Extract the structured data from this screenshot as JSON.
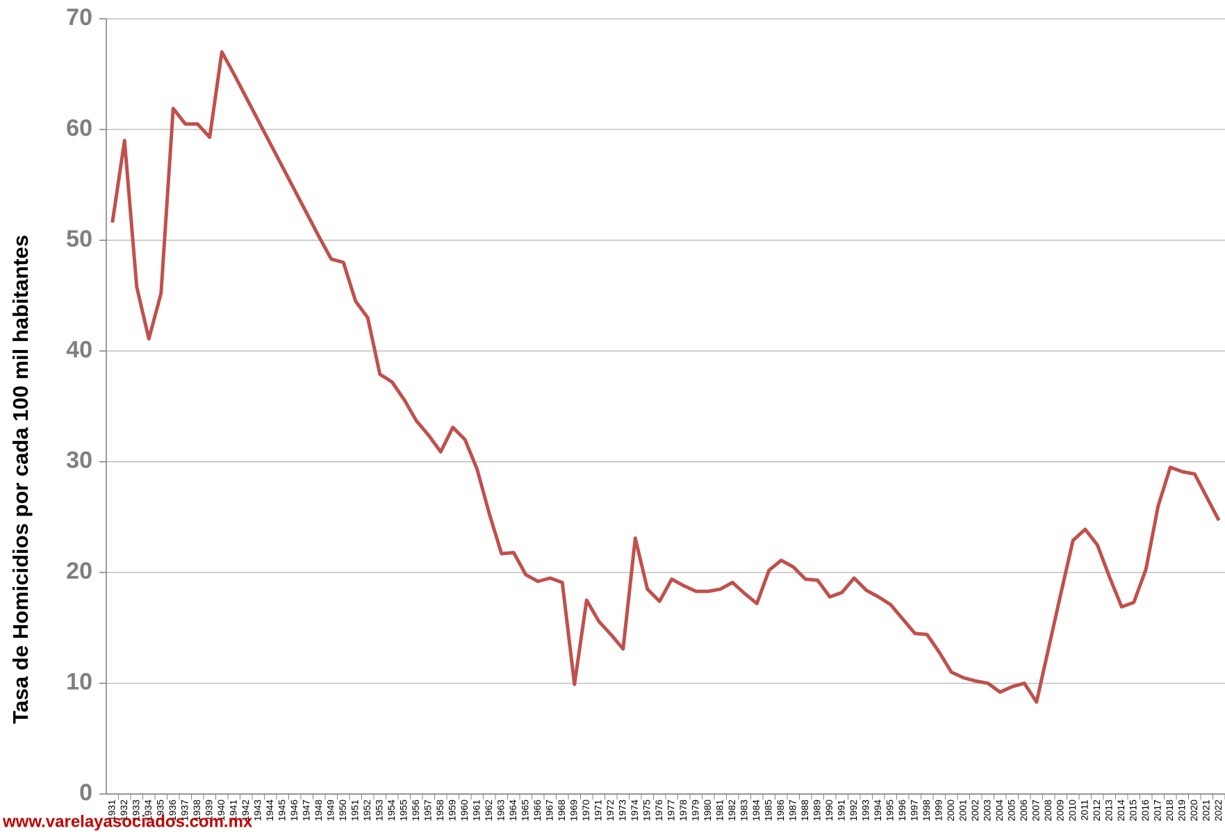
{
  "chart_data": {
    "type": "line",
    "y_label": "Tasa de Homicidios por cada 100 mil habitantes",
    "watermark": "www.varelayasociados.com.mx",
    "categories": [
      "1931",
      "1932",
      "1933",
      "1934",
      "1935",
      "1936",
      "1937",
      "1938",
      "1939",
      "1940",
      "1941",
      "1942",
      "1943",
      "1944",
      "1945",
      "1946",
      "1947",
      "1948",
      "1949",
      "1950",
      "1951",
      "1952",
      "1953",
      "1954",
      "1955",
      "1956",
      "1957",
      "1958",
      "1959",
      "1960",
      "1961",
      "1962",
      "1963",
      "1964",
      "1965",
      "1966",
      "1967",
      "1968",
      "1969",
      "1970",
      "1971",
      "1972",
      "1973",
      "1974",
      "1975",
      "1976",
      "1977",
      "1978",
      "1979",
      "1980",
      "1981",
      "1982",
      "1983",
      "1984",
      "1985",
      "1986",
      "1987",
      "1988",
      "1989",
      "1990",
      "1991",
      "1992",
      "1993",
      "1994",
      "1995",
      "1996",
      "1997",
      "1998",
      "1999",
      "2000",
      "2001",
      "2002",
      "2003",
      "2004",
      "2005",
      "2006",
      "2007",
      "2008",
      "2009",
      "2010",
      "2011",
      "2012",
      "2013",
      "2014",
      "2015",
      "2016",
      "2017",
      "2018",
      "2019",
      "2020",
      "2021",
      "2022"
    ],
    "values": [
      51.6,
      59.0,
      45.8,
      41.1,
      45.2,
      61.9,
      60.5,
      60.5,
      59.3,
      67.0,
      65.0,
      62.9,
      60.8,
      58.7,
      56.6,
      54.5,
      52.4,
      50.3,
      48.3,
      48.0,
      44.5,
      43.0,
      37.9,
      37.2,
      35.6,
      33.7,
      32.4,
      30.9,
      33.1,
      32.0,
      29.3,
      25.3,
      21.7,
      21.8,
      19.8,
      19.2,
      19.5,
      19.1,
      9.9,
      17.5,
      15.6,
      14.4,
      13.1,
      23.1,
      18.5,
      17.4,
      19.4,
      18.8,
      18.3,
      18.3,
      18.5,
      19.1,
      18.1,
      17.2,
      20.2,
      21.1,
      20.5,
      19.4,
      19.3,
      17.8,
      18.2,
      19.5,
      18.4,
      17.8,
      17.1,
      15.8,
      14.5,
      14.4,
      12.8,
      11.0,
      10.5,
      10.2,
      10.0,
      9.2,
      9.7,
      10.0,
      8.3,
      13.2,
      18.1,
      22.9,
      23.9,
      22.5,
      19.6,
      16.9,
      17.3,
      20.3,
      26.0,
      29.5,
      29.1,
      28.9,
      26.8,
      24.7
    ],
    "color": "#c0504d",
    "ylim": [
      0,
      70
    ],
    "yticks": [
      0,
      10,
      20,
      30,
      40,
      50,
      60,
      70
    ],
    "grid": true
  }
}
